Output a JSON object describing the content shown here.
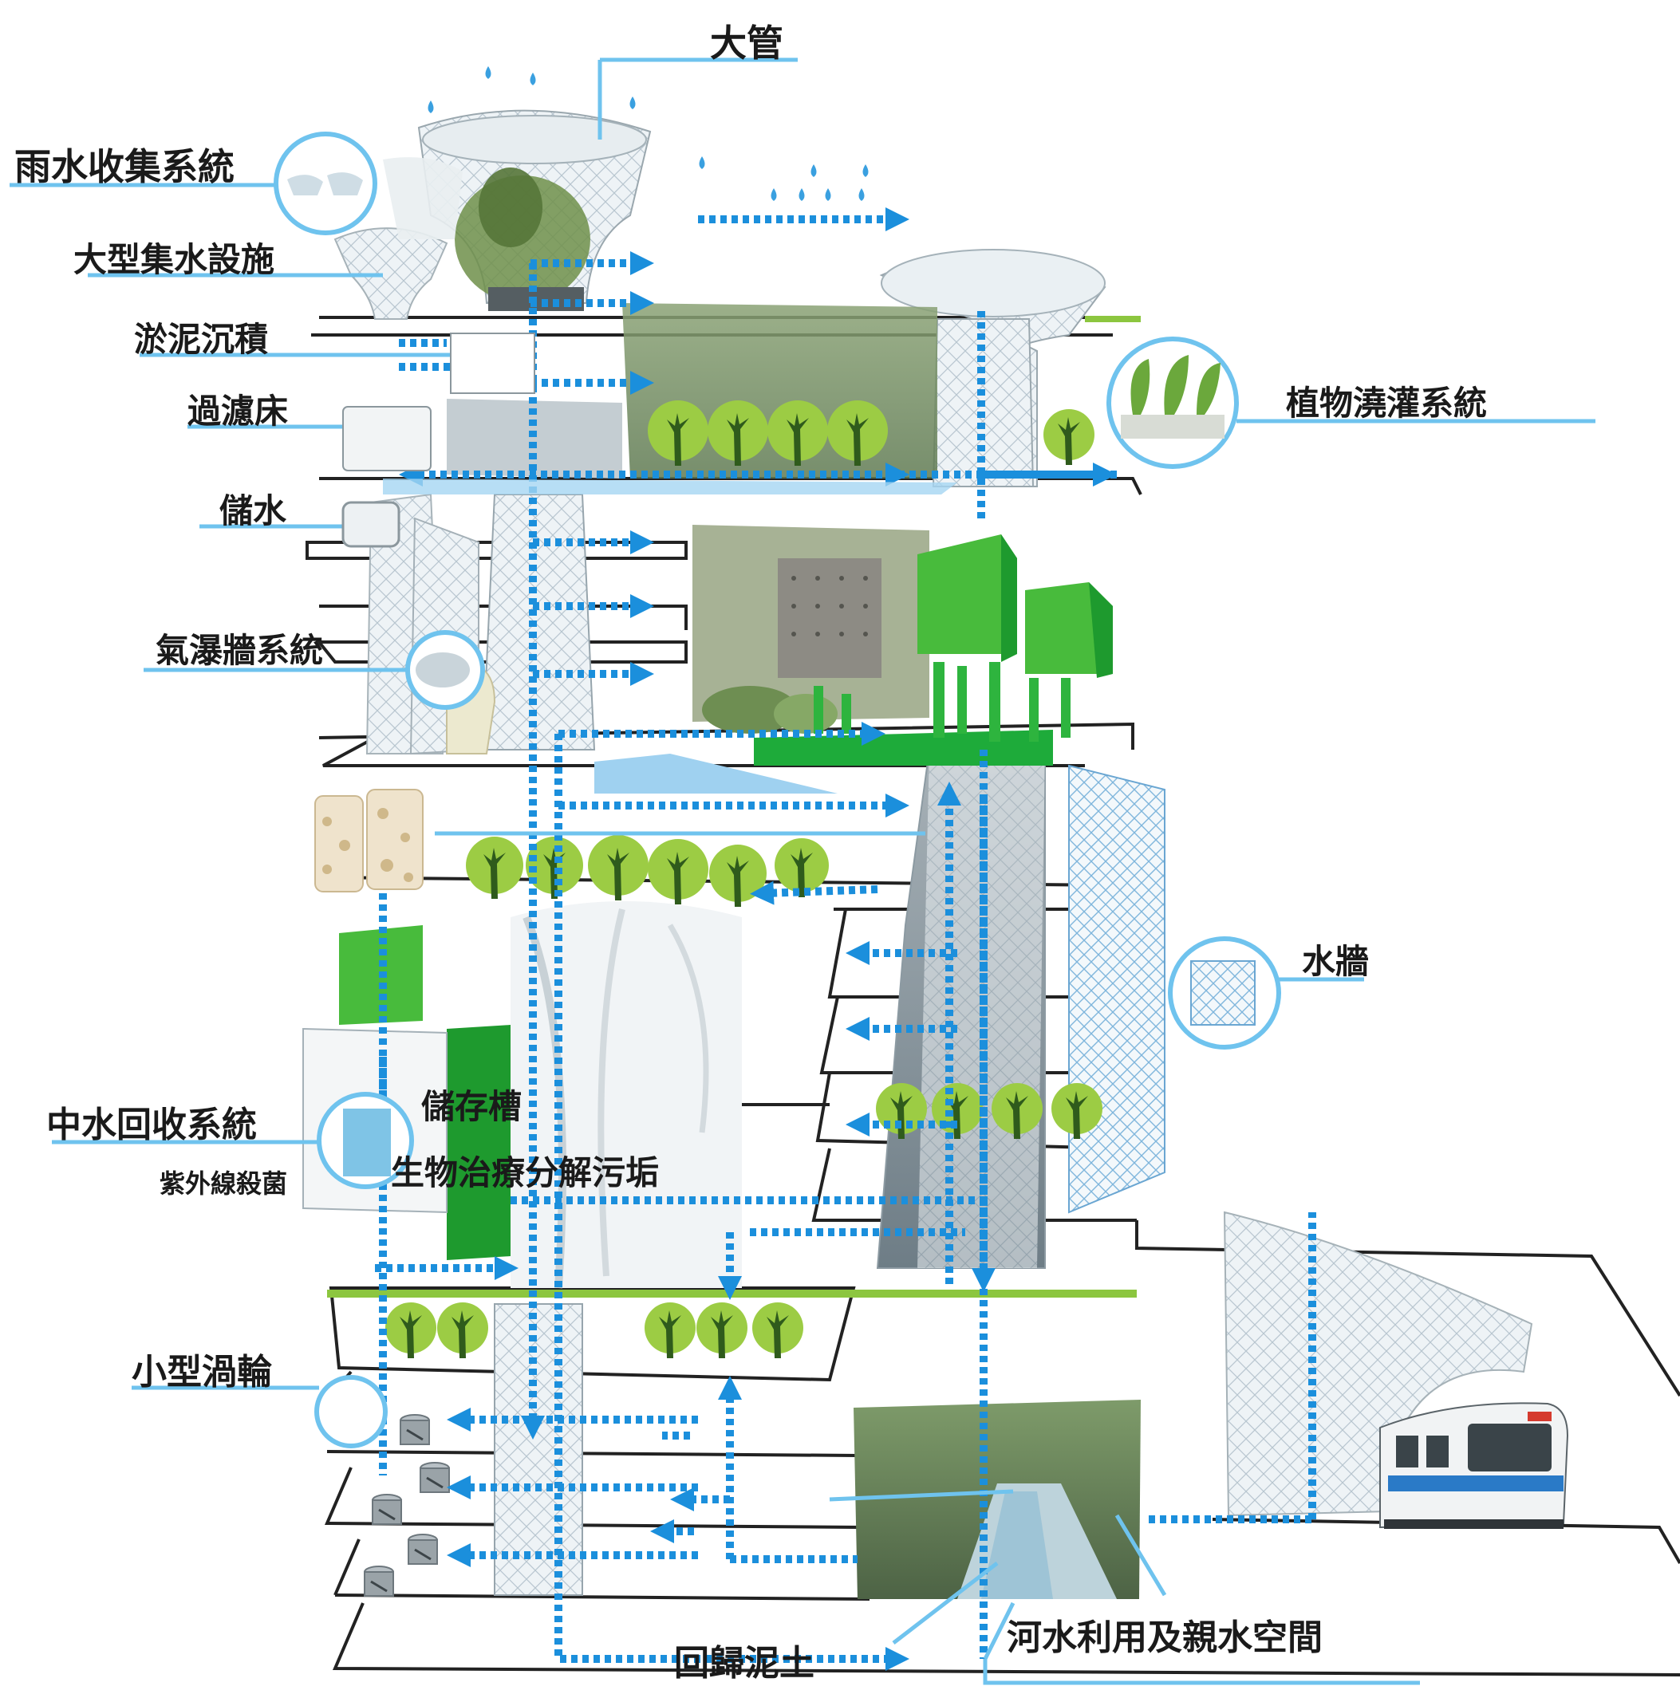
{
  "colors": {
    "flow": "#1b8fdc",
    "callout": "#6fc3ee",
    "leaf": "#9ccc44",
    "leaf_dark": "#5aa02a",
    "box_green": "#48bb3c",
    "box_green_dark": "#1e9a2e",
    "slab": "#222222",
    "lime": "#8cc63f"
  },
  "labels": {
    "big_pipe": "大管",
    "rain_collection": "雨水收集系統",
    "large_catchment": "大型集水設施",
    "sediment": "淤泥沉積",
    "filter_bed": "過濾床",
    "storage": "儲水",
    "mist_wall": "氣瀑牆系統",
    "plant_irrigation": "植物澆灌系統",
    "water_wall": "水牆",
    "greywater": "中水回收系統",
    "uv": "紫外線殺菌",
    "storage_tank": "儲存槽",
    "bio_treatment": "生物治療分解污垢",
    "micro_turbine": "小型渦輪",
    "return_soil": "回歸泥土",
    "river_use": "河水利用及親水空間"
  },
  "icons": {
    "rain": "raindrop-icon",
    "tree": "tree-icon",
    "turbine": "turbine-icon",
    "train": "metro-train-icon",
    "arrow": "flow-arrow-icon"
  }
}
